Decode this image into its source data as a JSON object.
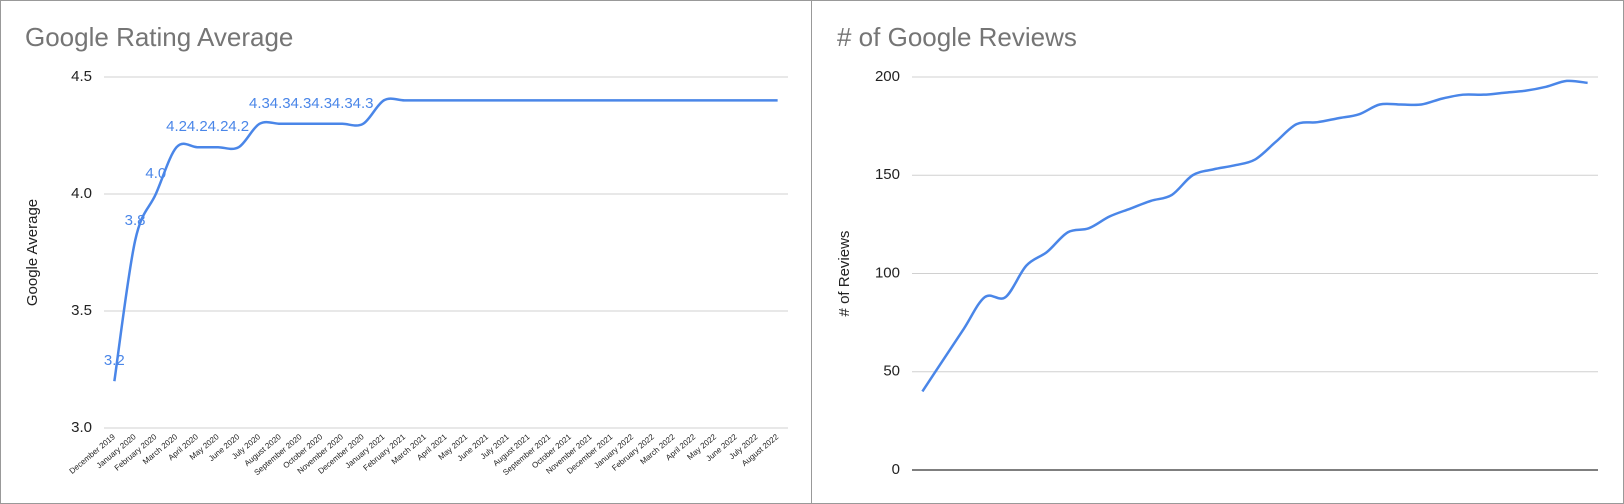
{
  "chart_data": [
    {
      "type": "line",
      "title": "Google Rating Average",
      "y_label": "Google Average",
      "categories": [
        "December 2019",
        "January 2020",
        "February 2020",
        "March 2020",
        "April 2020",
        "May 2020",
        "June 2020",
        "July 2020",
        "August 2020",
        "September 2020",
        "October 2020",
        "November 2020",
        "December 2020",
        "January 2021",
        "February 2021",
        "March 2021",
        "April 2021",
        "May 2021",
        "June 2021",
        "July 2021",
        "August 2021",
        "September 2021",
        "October 2021",
        "November 2021",
        "December 2021",
        "January 2022",
        "February 2022",
        "March 2022",
        "April 2022",
        "May 2022",
        "June 2022",
        "July 2022",
        "August 2022"
      ],
      "series": [
        {
          "name": "Google Average",
          "color": "#4a86e8",
          "values": [
            3.2,
            3.8,
            4.0,
            4.2,
            4.2,
            4.2,
            4.2,
            4.3,
            4.3,
            4.3,
            4.3,
            4.3,
            4.3,
            4.4,
            4.4,
            4.4,
            4.4,
            4.4,
            4.4,
            4.4,
            4.4,
            4.4,
            4.4,
            4.4,
            4.4,
            4.4,
            4.4,
            4.4,
            4.4,
            4.4,
            4.4,
            4.4,
            4.4
          ],
          "value_labels": [
            "3.2",
            "3.8",
            "4.0",
            "4.2",
            "4.2",
            "4.2",
            "4.2",
            "4.3",
            "4.3",
            "4.3",
            "4.3",
            "4.3",
            "4.3",
            null,
            null,
            null,
            null,
            null,
            null,
            null,
            null,
            null,
            null,
            null,
            null,
            null,
            null,
            null,
            null,
            null,
            null,
            null,
            null
          ]
        }
      ],
      "ylim": [
        3.0,
        4.5
      ],
      "yticks": [
        {
          "value": 3.0,
          "label": "3.0"
        },
        3.5,
        {
          "value": 4.0,
          "label": "4.0"
        },
        4.5
      ],
      "grid": true
    },
    {
      "type": "line",
      "title": "# of Google Reviews",
      "y_label": "# of Reviews",
      "series": [
        {
          "name": "# of Reviews",
          "color": "#4a86e8",
          "values": [
            40,
            56,
            72,
            88,
            88,
            104,
            111,
            121,
            123,
            129,
            133,
            137,
            140,
            150,
            153,
            155,
            158,
            167,
            176,
            177,
            179,
            181,
            186,
            186,
            186,
            189,
            191,
            191,
            192,
            193,
            195,
            198,
            197
          ]
        }
      ],
      "ylim": [
        0,
        200
      ],
      "yticks": [
        0,
        50,
        100,
        150,
        200
      ],
      "grid": true
    }
  ]
}
